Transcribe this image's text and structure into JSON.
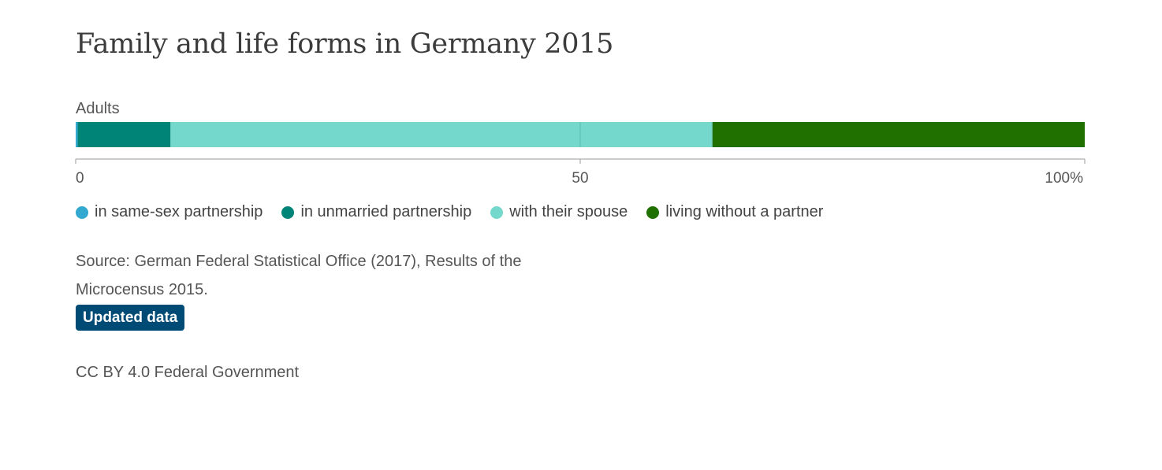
{
  "title": "Family and life forms in Germany 2015",
  "source_text": "Source: German Federal Statistical Office (2017), Results of the Microcensus 2015.",
  "badge_label": "Updated data",
  "license_text": "CC BY 4.0 Federal Government",
  "chart_data": {
    "type": "bar",
    "orientation": "horizontal",
    "stacked": true,
    "categories": [
      "Adults"
    ],
    "xlim": [
      0,
      100
    ],
    "tick_values": [
      0,
      50,
      100
    ],
    "tick_labels": [
      "0",
      "50",
      "100%"
    ],
    "grid": false,
    "legend_position": "bottom",
    "series": [
      {
        "name": "in same-sex partnership",
        "values": [
          0.2
        ],
        "color": "#33a9cf"
      },
      {
        "name": "in unmarried partnership",
        "values": [
          9.2
        ],
        "color": "#008478"
      },
      {
        "name": "with their spouse",
        "values": [
          53.7
        ],
        "color": "#74d8cd"
      },
      {
        "name": "living without a partner",
        "values": [
          36.9
        ],
        "color": "#207000"
      }
    ]
  }
}
